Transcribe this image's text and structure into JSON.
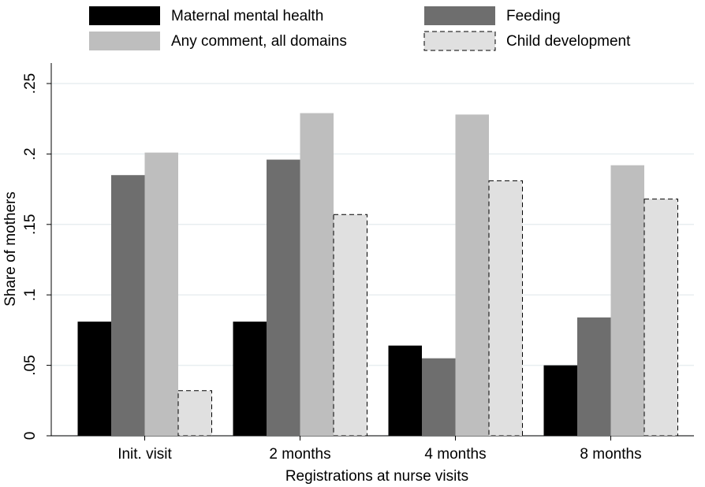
{
  "chart_data": {
    "type": "bar",
    "x_label": "Registrations at nurse visits",
    "y_label": "Share of mothers",
    "categories": [
      "Init. visit",
      "2 months",
      "4 months",
      "8 months"
    ],
    "series": [
      {
        "name": "Maternal mental health",
        "color": "#000000",
        "values": [
          0.081,
          0.081,
          0.064,
          0.05
        ]
      },
      {
        "name": "Feeding",
        "color": "#6e6e6e",
        "values": [
          0.185,
          0.196,
          0.055,
          0.084
        ]
      },
      {
        "name": "Any comment, all domains",
        "color": "#bebebe",
        "values": [
          0.201,
          0.229,
          0.228,
          0.192
        ]
      },
      {
        "name": "Child development",
        "color": "#e0e0e0",
        "values": [
          0.032,
          0.157,
          0.181,
          0.168
        ],
        "linestyle": "dashed"
      }
    ],
    "ylim": [
      0,
      0.25
    ],
    "yticks": [
      0,
      {
        "value": 0.05,
        "label": ".05"
      },
      {
        "value": 0.1,
        "label": ".1"
      },
      {
        "value": 0.15,
        "label": ".15"
      },
      {
        "value": 0.2,
        "label": ".2"
      },
      {
        "value": 0.25,
        "label": ".25"
      }
    ],
    "grid": true
  }
}
